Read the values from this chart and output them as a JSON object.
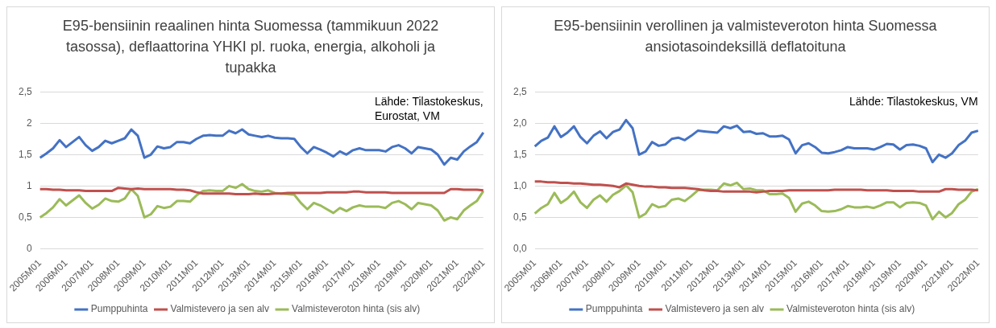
{
  "chart_data": [
    {
      "type": "line",
      "title": "E95-bensiinin reaalinen hinta Suomessa (tammikuun 2022 tasossa), deflaattorina YHKI pl. ruoka, energia, alkoholi ja tupakka",
      "annotations": [
        "Lähde: Tilastokeskus, Eurostat, VM"
      ],
      "grid": "y",
      "legend": "bottom",
      "ylim": [
        0,
        2.5
      ],
      "yticks": [
        {
          "value": 0,
          "label": "0"
        },
        {
          "value": 0.5,
          "label": "0,5"
        },
        {
          "value": 1,
          "label": "1"
        },
        {
          "value": 1.5,
          "label": "1,5"
        },
        {
          "value": 2,
          "label": "2"
        },
        {
          "value": 2.5,
          "label": "2,5"
        }
      ],
      "categories": [
        "2005M01",
        null,
        null,
        null,
        "2006M01",
        null,
        null,
        null,
        "2007M01",
        null,
        null,
        null,
        "2008M01",
        null,
        null,
        null,
        "2009M01",
        null,
        null,
        null,
        "2010M01",
        null,
        null,
        null,
        "2011M01",
        null,
        null,
        null,
        "2012M01",
        null,
        null,
        null,
        "2013M01",
        null,
        null,
        null,
        "2014M01",
        null,
        null,
        null,
        "2015M01",
        null,
        null,
        null,
        "2016M01",
        null,
        null,
        null,
        "2017M01",
        null,
        null,
        null,
        "2018M01",
        null,
        null,
        null,
        "2019M01",
        null,
        null,
        null,
        "2020M01",
        null,
        null,
        null,
        "2021M01",
        null,
        null,
        null,
        "2022M01"
      ],
      "series": [
        {
          "name": "Pumppuhinta",
          "color": "#4472c4",
          "values": [
            1.45,
            1.52,
            1.6,
            1.73,
            1.62,
            1.7,
            1.78,
            1.65,
            1.56,
            1.62,
            1.72,
            1.68,
            1.72,
            1.76,
            1.9,
            1.8,
            1.45,
            1.5,
            1.63,
            1.6,
            1.62,
            1.7,
            1.7,
            1.68,
            1.75,
            1.8,
            1.81,
            1.8,
            1.8,
            1.88,
            1.84,
            1.9,
            1.82,
            1.8,
            1.78,
            1.8,
            1.77,
            1.76,
            1.76,
            1.75,
            1.62,
            1.52,
            1.62,
            1.58,
            1.53,
            1.47,
            1.55,
            1.5,
            1.57,
            1.6,
            1.57,
            1.57,
            1.57,
            1.55,
            1.62,
            1.65,
            1.6,
            1.52,
            1.62,
            1.6,
            1.58,
            1.5,
            1.34,
            1.45,
            1.42,
            1.55,
            1.63,
            1.7,
            1.85
          ]
        },
        {
          "name": "Valmistevero ja sen alv",
          "color": "#c0504d",
          "values": [
            0.95,
            0.95,
            0.94,
            0.94,
            0.93,
            0.93,
            0.93,
            0.92,
            0.92,
            0.92,
            0.92,
            0.92,
            0.97,
            0.96,
            0.95,
            0.96,
            0.95,
            0.95,
            0.95,
            0.95,
            0.95,
            0.94,
            0.94,
            0.93,
            0.9,
            0.88,
            0.88,
            0.88,
            0.88,
            0.88,
            0.87,
            0.87,
            0.87,
            0.88,
            0.87,
            0.87,
            0.88,
            0.88,
            0.89,
            0.89,
            0.89,
            0.89,
            0.89,
            0.89,
            0.9,
            0.9,
            0.9,
            0.9,
            0.91,
            0.91,
            0.9,
            0.9,
            0.9,
            0.9,
            0.89,
            0.89,
            0.89,
            0.89,
            0.89,
            0.89,
            0.89,
            0.89,
            0.89,
            0.95,
            0.95,
            0.94,
            0.94,
            0.94,
            0.93
          ]
        },
        {
          "name": "Valmisteveroton hinta (sis alv)",
          "color": "#9bbb59",
          "values": [
            0.5,
            0.57,
            0.66,
            0.79,
            0.69,
            0.77,
            0.85,
            0.73,
            0.64,
            0.7,
            0.8,
            0.76,
            0.75,
            0.8,
            0.95,
            0.84,
            0.5,
            0.55,
            0.68,
            0.65,
            0.67,
            0.76,
            0.76,
            0.75,
            0.85,
            0.92,
            0.93,
            0.92,
            0.92,
            1.0,
            0.97,
            1.03,
            0.95,
            0.92,
            0.91,
            0.93,
            0.89,
            0.88,
            0.87,
            0.86,
            0.73,
            0.63,
            0.73,
            0.69,
            0.63,
            0.57,
            0.65,
            0.6,
            0.66,
            0.69,
            0.67,
            0.67,
            0.67,
            0.65,
            0.73,
            0.76,
            0.71,
            0.63,
            0.73,
            0.71,
            0.69,
            0.61,
            0.45,
            0.5,
            0.47,
            0.61,
            0.69,
            0.76,
            0.92
          ]
        }
      ]
    },
    {
      "type": "line",
      "title": "E95-bensiinin verollinen ja valmisteveroton hinta Suomessa ansiotasoindeksillä deflatoituna",
      "annotations": [
        "Lähde: Tilastokeskus, VM"
      ],
      "grid": "y",
      "legend": "bottom",
      "ylim": [
        0,
        2.5
      ],
      "yticks": [
        {
          "value": 0,
          "label": "0,0"
        },
        {
          "value": 0.5,
          "label": "0,5"
        },
        {
          "value": 1,
          "label": "1,0"
        },
        {
          "value": 1.5,
          "label": "1,5"
        },
        {
          "value": 2,
          "label": "2,0"
        },
        {
          "value": 2.5,
          "label": "2,5"
        }
      ],
      "categories": [
        "2005M01",
        null,
        null,
        null,
        "2006M01",
        null,
        null,
        null,
        "2007M01",
        null,
        null,
        null,
        "2008M01",
        null,
        null,
        null,
        "2009M01",
        null,
        null,
        null,
        "2010M01",
        null,
        null,
        null,
        "2011M01",
        null,
        null,
        null,
        "2012M01",
        null,
        null,
        null,
        "2013M01",
        null,
        null,
        null,
        "2014M01",
        null,
        null,
        null,
        "2015M01",
        null,
        null,
        null,
        "2016M01",
        null,
        null,
        null,
        "2017M01",
        null,
        null,
        null,
        "2018M01",
        null,
        null,
        null,
        "2019M01",
        null,
        null,
        null,
        "2020M01",
        null,
        null,
        null,
        "2021M01",
        null,
        null,
        null,
        "2022M01"
      ],
      "series": [
        {
          "name": "Pumppuhinta",
          "color": "#4472c4",
          "values": [
            1.63,
            1.72,
            1.77,
            1.95,
            1.78,
            1.85,
            1.95,
            1.78,
            1.68,
            1.8,
            1.87,
            1.76,
            1.86,
            1.9,
            2.05,
            1.92,
            1.5,
            1.55,
            1.7,
            1.64,
            1.66,
            1.75,
            1.77,
            1.73,
            1.8,
            1.88,
            1.87,
            1.86,
            1.85,
            1.95,
            1.92,
            1.96,
            1.86,
            1.87,
            1.83,
            1.84,
            1.79,
            1.79,
            1.8,
            1.74,
            1.52,
            1.65,
            1.68,
            1.62,
            1.53,
            1.52,
            1.54,
            1.57,
            1.62,
            1.6,
            1.6,
            1.6,
            1.58,
            1.62,
            1.67,
            1.66,
            1.58,
            1.65,
            1.66,
            1.64,
            1.6,
            1.38,
            1.5,
            1.45,
            1.52,
            1.65,
            1.72,
            1.85,
            1.88
          ]
        },
        {
          "name": "Valmistevero ja sen alv",
          "color": "#c0504d",
          "values": [
            1.07,
            1.07,
            1.06,
            1.06,
            1.05,
            1.05,
            1.04,
            1.04,
            1.03,
            1.02,
            1.02,
            1.01,
            1.0,
            0.98,
            1.04,
            1.02,
            1.0,
            0.99,
            0.99,
            0.98,
            0.98,
            0.97,
            0.97,
            0.97,
            0.96,
            0.95,
            0.93,
            0.92,
            0.92,
            0.91,
            0.91,
            0.91,
            0.91,
            0.91,
            0.9,
            0.91,
            0.92,
            0.92,
            0.92,
            0.93,
            0.93,
            0.93,
            0.93,
            0.93,
            0.93,
            0.93,
            0.94,
            0.94,
            0.94,
            0.94,
            0.94,
            0.93,
            0.93,
            0.93,
            0.93,
            0.92,
            0.92,
            0.92,
            0.92,
            0.91,
            0.91,
            0.91,
            0.91,
            0.95,
            0.95,
            0.94,
            0.94,
            0.94,
            0.93
          ]
        },
        {
          "name": "Valmisteveroton hinta (sis alv)",
          "color": "#9bbb59",
          "values": [
            0.56,
            0.65,
            0.71,
            0.89,
            0.73,
            0.8,
            0.91,
            0.74,
            0.65,
            0.78,
            0.85,
            0.75,
            0.86,
            0.92,
            1.01,
            0.9,
            0.5,
            0.56,
            0.71,
            0.66,
            0.68,
            0.78,
            0.8,
            0.76,
            0.84,
            0.93,
            0.94,
            0.94,
            0.93,
            1.04,
            1.01,
            1.05,
            0.95,
            0.96,
            0.93,
            0.93,
            0.87,
            0.87,
            0.88,
            0.81,
            0.59,
            0.72,
            0.75,
            0.69,
            0.6,
            0.59,
            0.6,
            0.63,
            0.68,
            0.66,
            0.66,
            0.67,
            0.65,
            0.69,
            0.74,
            0.74,
            0.66,
            0.73,
            0.74,
            0.73,
            0.69,
            0.47,
            0.59,
            0.5,
            0.57,
            0.71,
            0.78,
            0.91,
            0.95
          ]
        }
      ]
    }
  ]
}
